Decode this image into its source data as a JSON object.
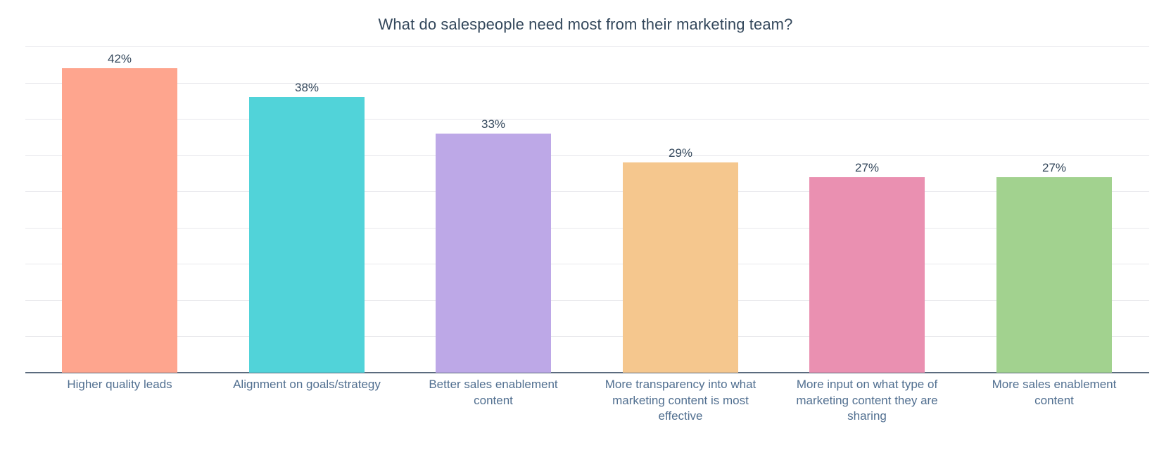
{
  "chart_data": {
    "type": "bar",
    "title": "What do salespeople need most from their marketing team?",
    "xlabel": "",
    "ylabel": "",
    "ylim": [
      0,
      45
    ],
    "grid": true,
    "gridline_step": 5,
    "legend": null,
    "categories": [
      "Higher quality leads",
      "Alignment on goals/strategy",
      "Better sales enablement content",
      "More transparency into what marketing content is most effective",
      "More input on what type of marketing content they are sharing",
      "More sales enablement content"
    ],
    "values": [
      42,
      38,
      33,
      29,
      27,
      27
    ],
    "value_labels": [
      "42%",
      "38%",
      "33%",
      "29%",
      "27%",
      "27%"
    ],
    "colors": [
      "#fea58e",
      "#51d3d9",
      "#bda8e7",
      "#f5c78e",
      "#ea90b1",
      "#a2d28f"
    ]
  },
  "bars": [
    {
      "label_lines": [
        "Higher quality leads"
      ],
      "value_label": "42%",
      "color": "#fea58e"
    },
    {
      "label_lines": [
        "Alignment on goals/strategy"
      ],
      "value_label": "38%",
      "color": "#51d3d9"
    },
    {
      "label_lines": [
        "Better sales enablement",
        "content"
      ],
      "value_label": "33%",
      "color": "#bda8e7"
    },
    {
      "label_lines": [
        "More transparency into what",
        "marketing content is most",
        "effective"
      ],
      "value_label": "29%",
      "color": "#f5c78e"
    },
    {
      "label_lines": [
        "More input on what type of",
        "marketing content they are",
        "sharing"
      ],
      "value_label": "27%",
      "color": "#ea90b1"
    },
    {
      "label_lines": [
        "More sales enablement",
        "content"
      ],
      "value_label": "27%",
      "color": "#a2d28f"
    }
  ]
}
